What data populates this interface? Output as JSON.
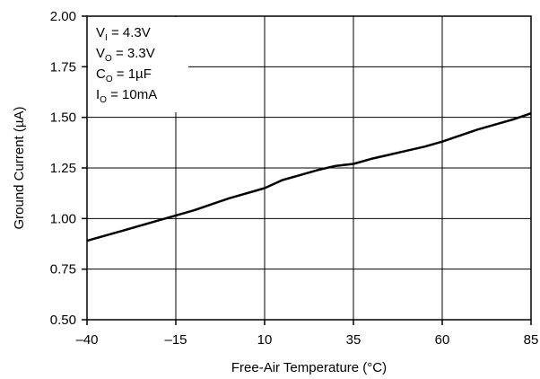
{
  "chart_data": {
    "type": "line",
    "xlabel": "Free-Air Temperature (°C)",
    "ylabel": "Ground Current (µA)",
    "xlim": [
      -40,
      85
    ],
    "ylim": [
      0.5,
      2.0
    ],
    "x_ticks": [
      -40,
      -15,
      10,
      35,
      60,
      85
    ],
    "x_tick_labels": [
      "–40",
      "–15",
      "10",
      "35",
      "60",
      "85"
    ],
    "y_ticks": [
      0.5,
      0.75,
      1.0,
      1.25,
      1.5,
      1.75,
      2.0
    ],
    "y_tick_labels": [
      "0.50",
      "0.75",
      "1.00",
      "1.25",
      "1.50",
      "1.75",
      "2.00"
    ],
    "grid": true,
    "series": [
      {
        "x": [
          -40,
          -30,
          -20,
          -10,
          0,
          10,
          15,
          20,
          25,
          30,
          35,
          40,
          45,
          50,
          55,
          60,
          65,
          70,
          75,
          80,
          85
        ],
        "y": [
          0.89,
          0.94,
          0.99,
          1.04,
          1.1,
          1.15,
          1.19,
          1.215,
          1.24,
          1.26,
          1.27,
          1.295,
          1.315,
          1.335,
          1.355,
          1.38,
          1.41,
          1.44,
          1.465,
          1.49,
          1.52
        ]
      }
    ],
    "conditions": [
      {
        "main": "V",
        "sub": "I",
        "rest": " = 4.3V"
      },
      {
        "main": "V",
        "sub": "O",
        "rest": " = 3.3V"
      },
      {
        "main": "C",
        "sub": "O",
        "rest": " = 1µF"
      },
      {
        "main": "I",
        "sub": "O",
        "rest": " = 10mA"
      }
    ],
    "colors": {
      "line": "#000000",
      "grid": "#000000",
      "background": "#ffffff"
    }
  }
}
